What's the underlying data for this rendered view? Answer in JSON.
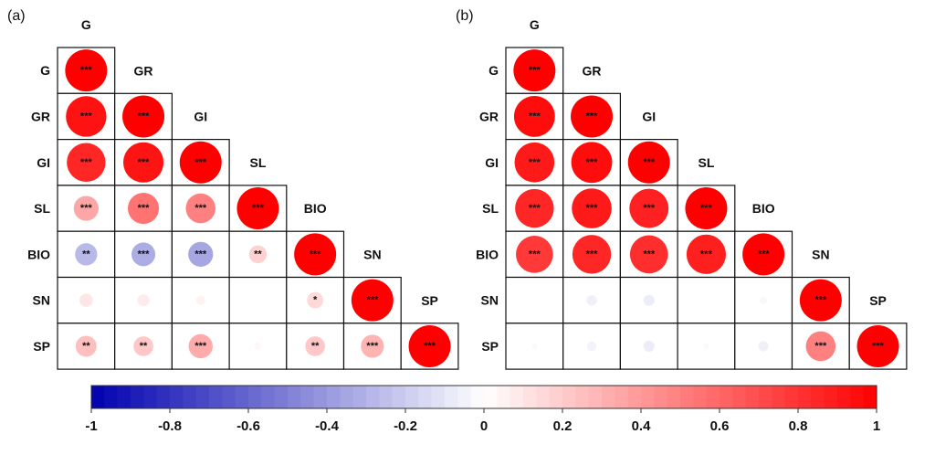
{
  "chart_data": {
    "type": "heatmap",
    "subtype": "correlation-matrix-circles-lower-triangle",
    "variables": [
      "G",
      "GR",
      "GI",
      "SL",
      "BIO",
      "SN",
      "SP"
    ],
    "panels": [
      {
        "label": "(a)",
        "matrix": [
          [
            1.0,
            null,
            null,
            null,
            null,
            null,
            null
          ],
          [
            0.93,
            1.0,
            null,
            null,
            null,
            null,
            null
          ],
          [
            0.85,
            0.92,
            1.0,
            null,
            null,
            null,
            null
          ],
          [
            0.35,
            0.55,
            0.5,
            1.0,
            null,
            null,
            null
          ],
          [
            -0.28,
            -0.32,
            -0.35,
            0.18,
            1.0,
            null,
            null
          ],
          [
            0.1,
            0.08,
            0.05,
            0.0,
            0.15,
            1.0,
            null
          ],
          [
            0.25,
            0.22,
            0.33,
            0.03,
            0.22,
            0.3,
            1.0
          ]
        ],
        "significance": [
          [
            "***",
            null,
            null,
            null,
            null,
            null,
            null
          ],
          [
            "***",
            "***",
            null,
            null,
            null,
            null,
            null
          ],
          [
            "***",
            "***",
            "***",
            null,
            null,
            null,
            null
          ],
          [
            "***",
            "***",
            "***",
            "***",
            null,
            null,
            null
          ],
          [
            "**",
            "***",
            "***",
            "**",
            "***",
            null,
            null
          ],
          [
            "",
            "",
            "",
            "",
            "*",
            "***",
            null
          ],
          [
            "**",
            "**",
            "***",
            "",
            "**",
            "***",
            "***"
          ]
        ]
      },
      {
        "label": "(b)",
        "matrix": [
          [
            1.0,
            null,
            null,
            null,
            null,
            null,
            null
          ],
          [
            0.95,
            1.0,
            null,
            null,
            null,
            null,
            null
          ],
          [
            0.9,
            0.95,
            1.0,
            null,
            null,
            null,
            null
          ],
          [
            0.85,
            0.9,
            0.87,
            1.0,
            null,
            null,
            null
          ],
          [
            0.78,
            0.85,
            0.82,
            0.88,
            1.0,
            null,
            null
          ],
          [
            0.0,
            -0.06,
            -0.07,
            0.0,
            -0.03,
            1.0,
            null
          ],
          [
            -0.02,
            -0.05,
            -0.07,
            -0.02,
            -0.06,
            0.5,
            1.0
          ]
        ],
        "significance": [
          [
            "***",
            null,
            null,
            null,
            null,
            null,
            null
          ],
          [
            "***",
            "***",
            null,
            null,
            null,
            null,
            null
          ],
          [
            "***",
            "***",
            "***",
            null,
            null,
            null,
            null
          ],
          [
            "***",
            "***",
            "***",
            "***",
            null,
            null,
            null
          ],
          [
            "***",
            "***",
            "***",
            "***",
            "***",
            null,
            null
          ],
          [
            "",
            "",
            "",
            "",
            "",
            "***",
            null
          ],
          [
            "",
            "",
            "",
            "",
            "",
            "***",
            "***"
          ]
        ]
      }
    ],
    "colorbar": {
      "range": [
        -1,
        1
      ],
      "ticks": [
        "-1",
        "-0.8",
        "-0.6",
        "-0.4",
        "-0.2",
        "0",
        "0.2",
        "0.4",
        "0.6",
        "0.8",
        "1"
      ],
      "tick_values": [
        -1,
        -0.8,
        -0.6,
        -0.4,
        -0.2,
        0,
        0.2,
        0.4,
        0.6,
        0.8,
        1
      ],
      "placement": "bottom"
    },
    "colors": {
      "negative": "#0000b0",
      "neutral": "#ffffff",
      "positive": "#ff0000",
      "grid": "#111111"
    }
  }
}
